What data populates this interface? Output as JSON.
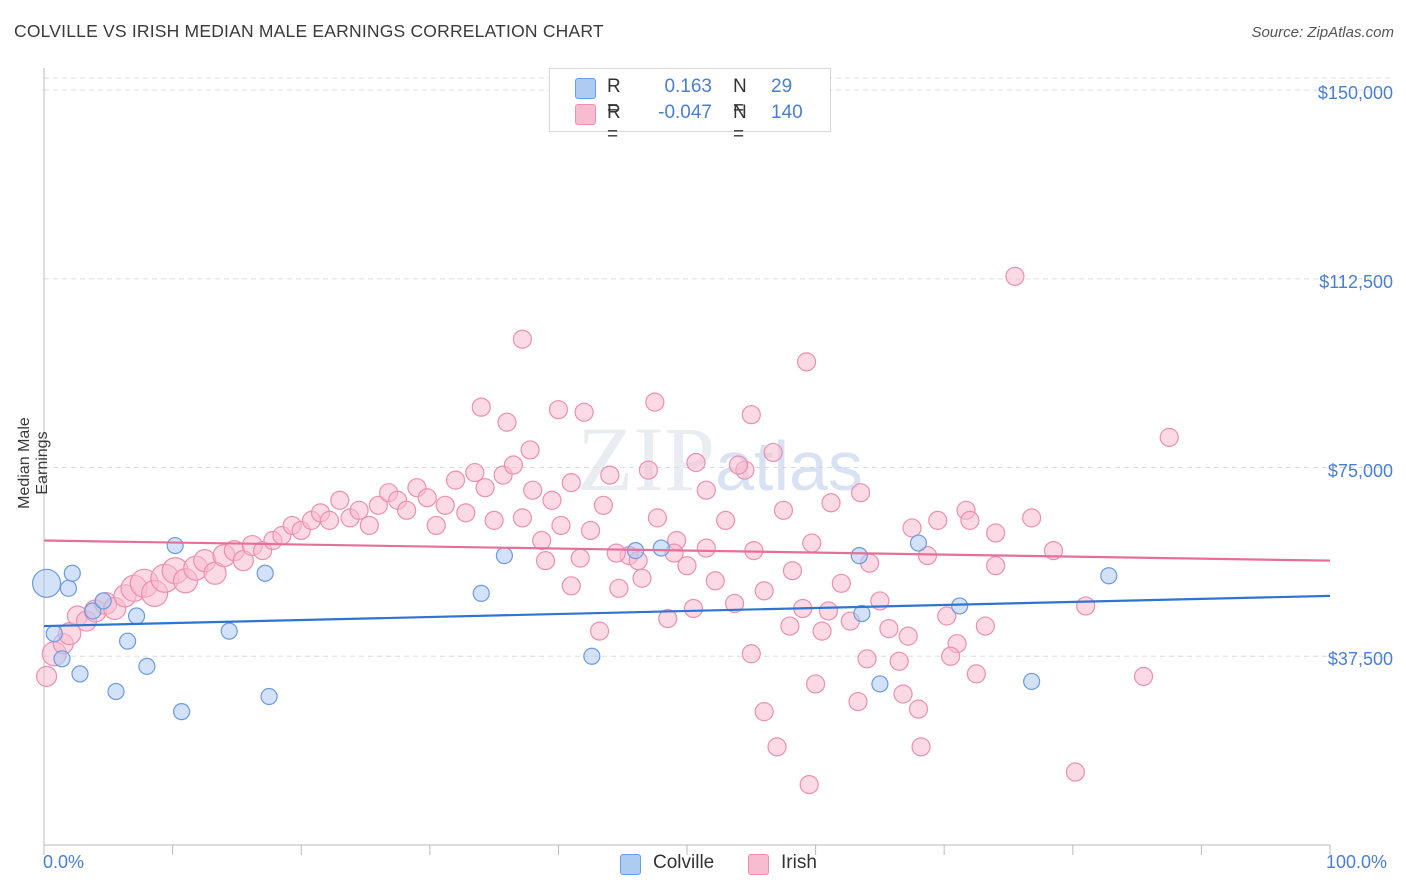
{
  "title": "COLVILLE VS IRISH MEDIAN MALE EARNINGS CORRELATION CHART",
  "source": "Source: ZipAtlas.com",
  "watermark": "ZIPatlas",
  "legend": {
    "rows": [
      {
        "r_label": "R =",
        "r_value": "0.163",
        "n_label": "N =",
        "n_value": "29"
      },
      {
        "r_label": "R =",
        "r_value": "-0.047",
        "n_label": "N =",
        "n_value": "140"
      }
    ]
  },
  "bottom_legend": [
    "Colville",
    "Irish"
  ],
  "colors": {
    "colville_fill": "#aecbf2",
    "colville_stroke": "#6b9be0",
    "colville_line": "#2f74d0",
    "irish_fill": "#f7bcd0",
    "irish_stroke": "#ec8fb0",
    "irish_line": "#e4709a",
    "tick_text": "#4a7fd0",
    "grid": "#dddddd"
  },
  "chart_data": {
    "type": "scatter",
    "title": "COLVILLE VS IRISH MEDIAN MALE EARNINGS CORRELATION CHART",
    "xlabel": "",
    "ylabel": "Median Male Earnings",
    "xlim": [
      0,
      100
    ],
    "ylim": [
      0,
      153000
    ],
    "x_tick_labels": [
      "0.0%",
      "100.0%"
    ],
    "y_ticks": [
      37500,
      75000,
      112500,
      150000
    ],
    "y_tick_labels": [
      "$37,500",
      "$75,000",
      "$112,500",
      "$150,000"
    ],
    "grid": true,
    "series": [
      {
        "name": "Colville",
        "points": [
          [
            0.2,
            52000,
            14
          ],
          [
            0.8,
            42000,
            8
          ],
          [
            1.4,
            37000,
            8
          ],
          [
            1.9,
            51000,
            8
          ],
          [
            2.2,
            54000,
            8
          ],
          [
            2.8,
            34000,
            8
          ],
          [
            3.8,
            46500,
            8
          ],
          [
            4.6,
            48500,
            8
          ],
          [
            5.6,
            30500,
            8
          ],
          [
            6.5,
            40500,
            8
          ],
          [
            7.2,
            45500,
            8
          ],
          [
            8.0,
            35500,
            8
          ],
          [
            10.2,
            59500,
            8
          ],
          [
            10.7,
            26500,
            8
          ],
          [
            14.4,
            42500,
            8
          ],
          [
            17.2,
            54000,
            8
          ],
          [
            17.5,
            29500,
            8
          ],
          [
            34.0,
            50000,
            8
          ],
          [
            35.8,
            57500,
            8
          ],
          [
            42.6,
            37500,
            8
          ],
          [
            46.0,
            58500,
            8
          ],
          [
            48.0,
            59000,
            8
          ],
          [
            63.4,
            57500,
            8
          ],
          [
            63.6,
            46000,
            8
          ],
          [
            65.0,
            32000,
            8
          ],
          [
            68.0,
            60000,
            8
          ],
          [
            71.2,
            47500,
            8
          ],
          [
            76.8,
            32500,
            8
          ],
          [
            82.8,
            53500,
            8
          ]
        ]
      },
      {
        "name": "Irish",
        "points": [
          [
            0.2,
            33500,
            10
          ],
          [
            0.8,
            38000,
            12
          ],
          [
            1.5,
            40000,
            10
          ],
          [
            2.0,
            42000,
            11
          ],
          [
            2.6,
            45500,
            10
          ],
          [
            3.3,
            44500,
            10
          ],
          [
            4.0,
            46500,
            11
          ],
          [
            4.8,
            48000,
            11
          ],
          [
            5.5,
            47000,
            11
          ],
          [
            6.3,
            49500,
            11
          ],
          [
            7.0,
            51000,
            13
          ],
          [
            7.8,
            52000,
            14
          ],
          [
            8.6,
            50000,
            13
          ],
          [
            9.4,
            53000,
            14
          ],
          [
            10.2,
            54500,
            13
          ],
          [
            11.0,
            52500,
            12
          ],
          [
            11.8,
            55000,
            12
          ],
          [
            12.5,
            56500,
            11
          ],
          [
            13.3,
            54000,
            11
          ],
          [
            14.0,
            57500,
            11
          ],
          [
            14.8,
            58500,
            10
          ],
          [
            15.5,
            56500,
            10
          ],
          [
            16.2,
            59500,
            10
          ],
          [
            17.0,
            58500,
            9
          ],
          [
            17.8,
            60500,
            9
          ],
          [
            18.5,
            61500,
            9
          ],
          [
            19.3,
            63500,
            9
          ],
          [
            20.0,
            62500,
            9
          ],
          [
            20.8,
            64500,
            9
          ],
          [
            21.5,
            66000,
            9
          ],
          [
            22.2,
            64500,
            9
          ],
          [
            23.0,
            68500,
            9
          ],
          [
            23.8,
            65000,
            9
          ],
          [
            24.5,
            66500,
            9
          ],
          [
            25.3,
            63500,
            9
          ],
          [
            26.0,
            67500,
            9
          ],
          [
            26.8,
            70000,
            9
          ],
          [
            27.5,
            68500,
            9
          ],
          [
            28.2,
            66500,
            9
          ],
          [
            29.0,
            71000,
            9
          ],
          [
            29.8,
            69000,
            9
          ],
          [
            30.5,
            63500,
            9
          ],
          [
            31.2,
            67500,
            9
          ],
          [
            32.0,
            72500,
            9
          ],
          [
            32.8,
            66000,
            9
          ],
          [
            33.5,
            74000,
            9
          ],
          [
            34.3,
            71000,
            9
          ],
          [
            35.0,
            64500,
            9
          ],
          [
            35.7,
            73500,
            9
          ],
          [
            36.5,
            75500,
            9
          ],
          [
            37.2,
            65000,
            9
          ],
          [
            38.0,
            70500,
            9
          ],
          [
            38.7,
            60500,
            9
          ],
          [
            39.5,
            68500,
            9
          ],
          [
            40.2,
            63500,
            9
          ],
          [
            41.0,
            72000,
            9
          ],
          [
            41.7,
            57000,
            9
          ],
          [
            42.5,
            62500,
            9
          ],
          [
            43.2,
            42500,
            9
          ],
          [
            44.0,
            73500,
            9
          ],
          [
            44.7,
            51000,
            9
          ],
          [
            45.5,
            57500,
            9
          ],
          [
            46.2,
            56500,
            9
          ],
          [
            47.0,
            74500,
            9
          ],
          [
            47.7,
            65000,
            9
          ],
          [
            48.5,
            45000,
            9
          ],
          [
            49.2,
            60500,
            9
          ],
          [
            50.0,
            55500,
            9
          ],
          [
            50.7,
            76000,
            9
          ],
          [
            51.5,
            70500,
            9
          ],
          [
            52.2,
            52500,
            9
          ],
          [
            53.0,
            64500,
            9
          ],
          [
            53.7,
            48000,
            9
          ],
          [
            54.5,
            74500,
            9
          ],
          [
            55.2,
            58500,
            9
          ],
          [
            56.0,
            50500,
            9
          ],
          [
            56.7,
            78000,
            9
          ],
          [
            57.5,
            66500,
            9
          ],
          [
            58.2,
            54500,
            9
          ],
          [
            59.0,
            47000,
            9
          ],
          [
            59.7,
            60000,
            9
          ],
          [
            60.5,
            42500,
            9
          ],
          [
            61.2,
            68000,
            9
          ],
          [
            62.0,
            52000,
            9
          ],
          [
            62.7,
            44500,
            9
          ],
          [
            63.5,
            70000,
            9
          ],
          [
            64.2,
            56000,
            9
          ],
          [
            65.0,
            48500,
            9
          ],
          [
            65.7,
            43000,
            9
          ],
          [
            66.5,
            36500,
            9
          ],
          [
            67.2,
            41500,
            9
          ],
          [
            68.0,
            27000,
            9
          ],
          [
            68.7,
            57500,
            9
          ],
          [
            69.5,
            64500,
            9
          ],
          [
            70.2,
            45500,
            9
          ],
          [
            71.0,
            40000,
            9
          ],
          [
            71.7,
            66500,
            9
          ],
          [
            72.5,
            34000,
            9
          ],
          [
            73.2,
            43500,
            9
          ],
          [
            74.0,
            55500,
            9
          ],
          [
            75.5,
            113000,
            9
          ],
          [
            76.8,
            65000,
            9
          ],
          [
            78.5,
            58500,
            9
          ],
          [
            80.2,
            14500,
            9
          ],
          [
            81.0,
            47500,
            9
          ],
          [
            85.5,
            33500,
            9
          ],
          [
            87.5,
            81000,
            9
          ],
          [
            37.2,
            100500,
            9
          ],
          [
            37.8,
            78500,
            9
          ],
          [
            40.0,
            86500,
            9
          ],
          [
            36.0,
            84000,
            9
          ],
          [
            42.0,
            86000,
            9
          ],
          [
            47.5,
            88000,
            9
          ],
          [
            55.0,
            85500,
            9
          ],
          [
            59.3,
            96000,
            9
          ],
          [
            49.0,
            58000,
            9
          ],
          [
            54.0,
            75500,
            9
          ],
          [
            60.0,
            32000,
            9
          ],
          [
            59.5,
            12000,
            9
          ],
          [
            63.3,
            28500,
            9
          ],
          [
            68.2,
            19500,
            9
          ],
          [
            57.0,
            19500,
            9
          ],
          [
            56.0,
            26500,
            9
          ],
          [
            66.8,
            30000,
            9
          ],
          [
            34.0,
            87000,
            9
          ],
          [
            44.5,
            58000,
            9
          ],
          [
            46.5,
            53000,
            9
          ],
          [
            50.5,
            47000,
            9
          ],
          [
            51.5,
            59000,
            9
          ],
          [
            55.0,
            38000,
            9
          ],
          [
            58.0,
            43500,
            9
          ],
          [
            61.0,
            46500,
            9
          ],
          [
            64.0,
            37000,
            9
          ],
          [
            67.5,
            63000,
            9
          ],
          [
            70.5,
            37500,
            9
          ],
          [
            72.0,
            64500,
            9
          ],
          [
            74.0,
            62000,
            9
          ],
          [
            39.0,
            56500,
            9
          ],
          [
            41.0,
            51500,
            9
          ],
          [
            43.5,
            67500,
            9
          ]
        ]
      }
    ],
    "trendlines": [
      {
        "name": "Colville",
        "x": [
          0,
          100
        ],
        "y": [
          43500,
          49500
        ]
      },
      {
        "name": "Irish",
        "x": [
          0,
          100
        ],
        "y": [
          60500,
          56500
        ]
      }
    ]
  }
}
